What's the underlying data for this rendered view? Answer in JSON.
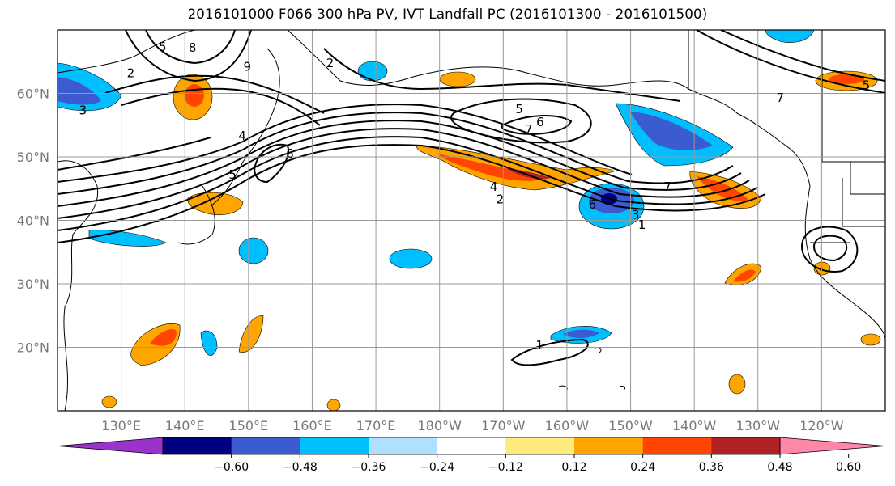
{
  "title": "2016101000 F066 300 hPa PV, IVT Landfall PC (2016101300 - 2016101500)",
  "map": {
    "lat_labels": [
      "60°N",
      "50°N",
      "40°N",
      "30°N",
      "20°N"
    ],
    "lat_values": [
      60,
      50,
      40,
      30,
      20
    ],
    "lon_labels": [
      "130°E",
      "140°E",
      "150°E",
      "160°E",
      "170°E",
      "180°W",
      "170°W",
      "160°W",
      "150°W",
      "140°W",
      "130°W",
      "120°W"
    ],
    "lon_values": [
      130,
      140,
      150,
      160,
      170,
      180,
      190,
      200,
      210,
      220,
      230,
      240
    ],
    "extent": {
      "lon_min": 120,
      "lon_max": 250,
      "lat_min": 10,
      "lat_max": 70
    },
    "contour_labels": [
      {
        "text": "2",
        "lon": 131.5,
        "lat": 63.2
      },
      {
        "text": "5",
        "lon": 136.5,
        "lat": 67.3
      },
      {
        "text": "8",
        "lon": 141.2,
        "lat": 67.2
      },
      {
        "text": "9",
        "lon": 149.8,
        "lat": 64.2
      },
      {
        "text": "3",
        "lon": 124,
        "lat": 57.3
      },
      {
        "text": "4",
        "lon": 149,
        "lat": 53.3
      },
      {
        "text": "5",
        "lon": 147.5,
        "lat": 47.2
      },
      {
        "text": "6",
        "lon": 156.5,
        "lat": 50.5
      },
      {
        "text": "2",
        "lon": 162.8,
        "lat": 64.8
      },
      {
        "text": "5",
        "lon": 192.5,
        "lat": 57.5
      },
      {
        "text": "6",
        "lon": 195.8,
        "lat": 55.5
      },
      {
        "text": "7",
        "lon": 194,
        "lat": 54.3
      },
      {
        "text": "4",
        "lon": 188.5,
        "lat": 45.3
      },
      {
        "text": "2",
        "lon": 189.5,
        "lat": 43.3
      },
      {
        "text": "6",
        "lon": 204,
        "lat": 42.5
      },
      {
        "text": "3",
        "lon": 210.8,
        "lat": 40.9
      },
      {
        "text": "1",
        "lon": 211.8,
        "lat": 39.3
      },
      {
        "text": "7",
        "lon": 215.8,
        "lat": 45.3
      },
      {
        "text": "7",
        "lon": 233.5,
        "lat": 59.3
      },
      {
        "text": "5",
        "lon": 247,
        "lat": 61.3
      },
      {
        "text": "1",
        "lon": 195.7,
        "lat": 20.3
      }
    ]
  },
  "colorbar": {
    "colors": [
      "#9933cc",
      "#000080",
      "#3a5cd0",
      "#00bfff",
      "#b0e0ff",
      "#ffffff",
      "#ffea80",
      "#ffa500",
      "#ff4500",
      "#b22222",
      "#ff88aa"
    ],
    "tick_labels": [
      "−0.60",
      "−0.48",
      "−0.36",
      "−0.24",
      "−0.12",
      "0.12",
      "0.24",
      "0.36",
      "0.48",
      "0.60"
    ],
    "levels": [
      -0.6,
      -0.48,
      -0.36,
      -0.24,
      -0.12,
      0.12,
      0.24,
      0.36,
      0.48,
      0.6
    ]
  }
}
